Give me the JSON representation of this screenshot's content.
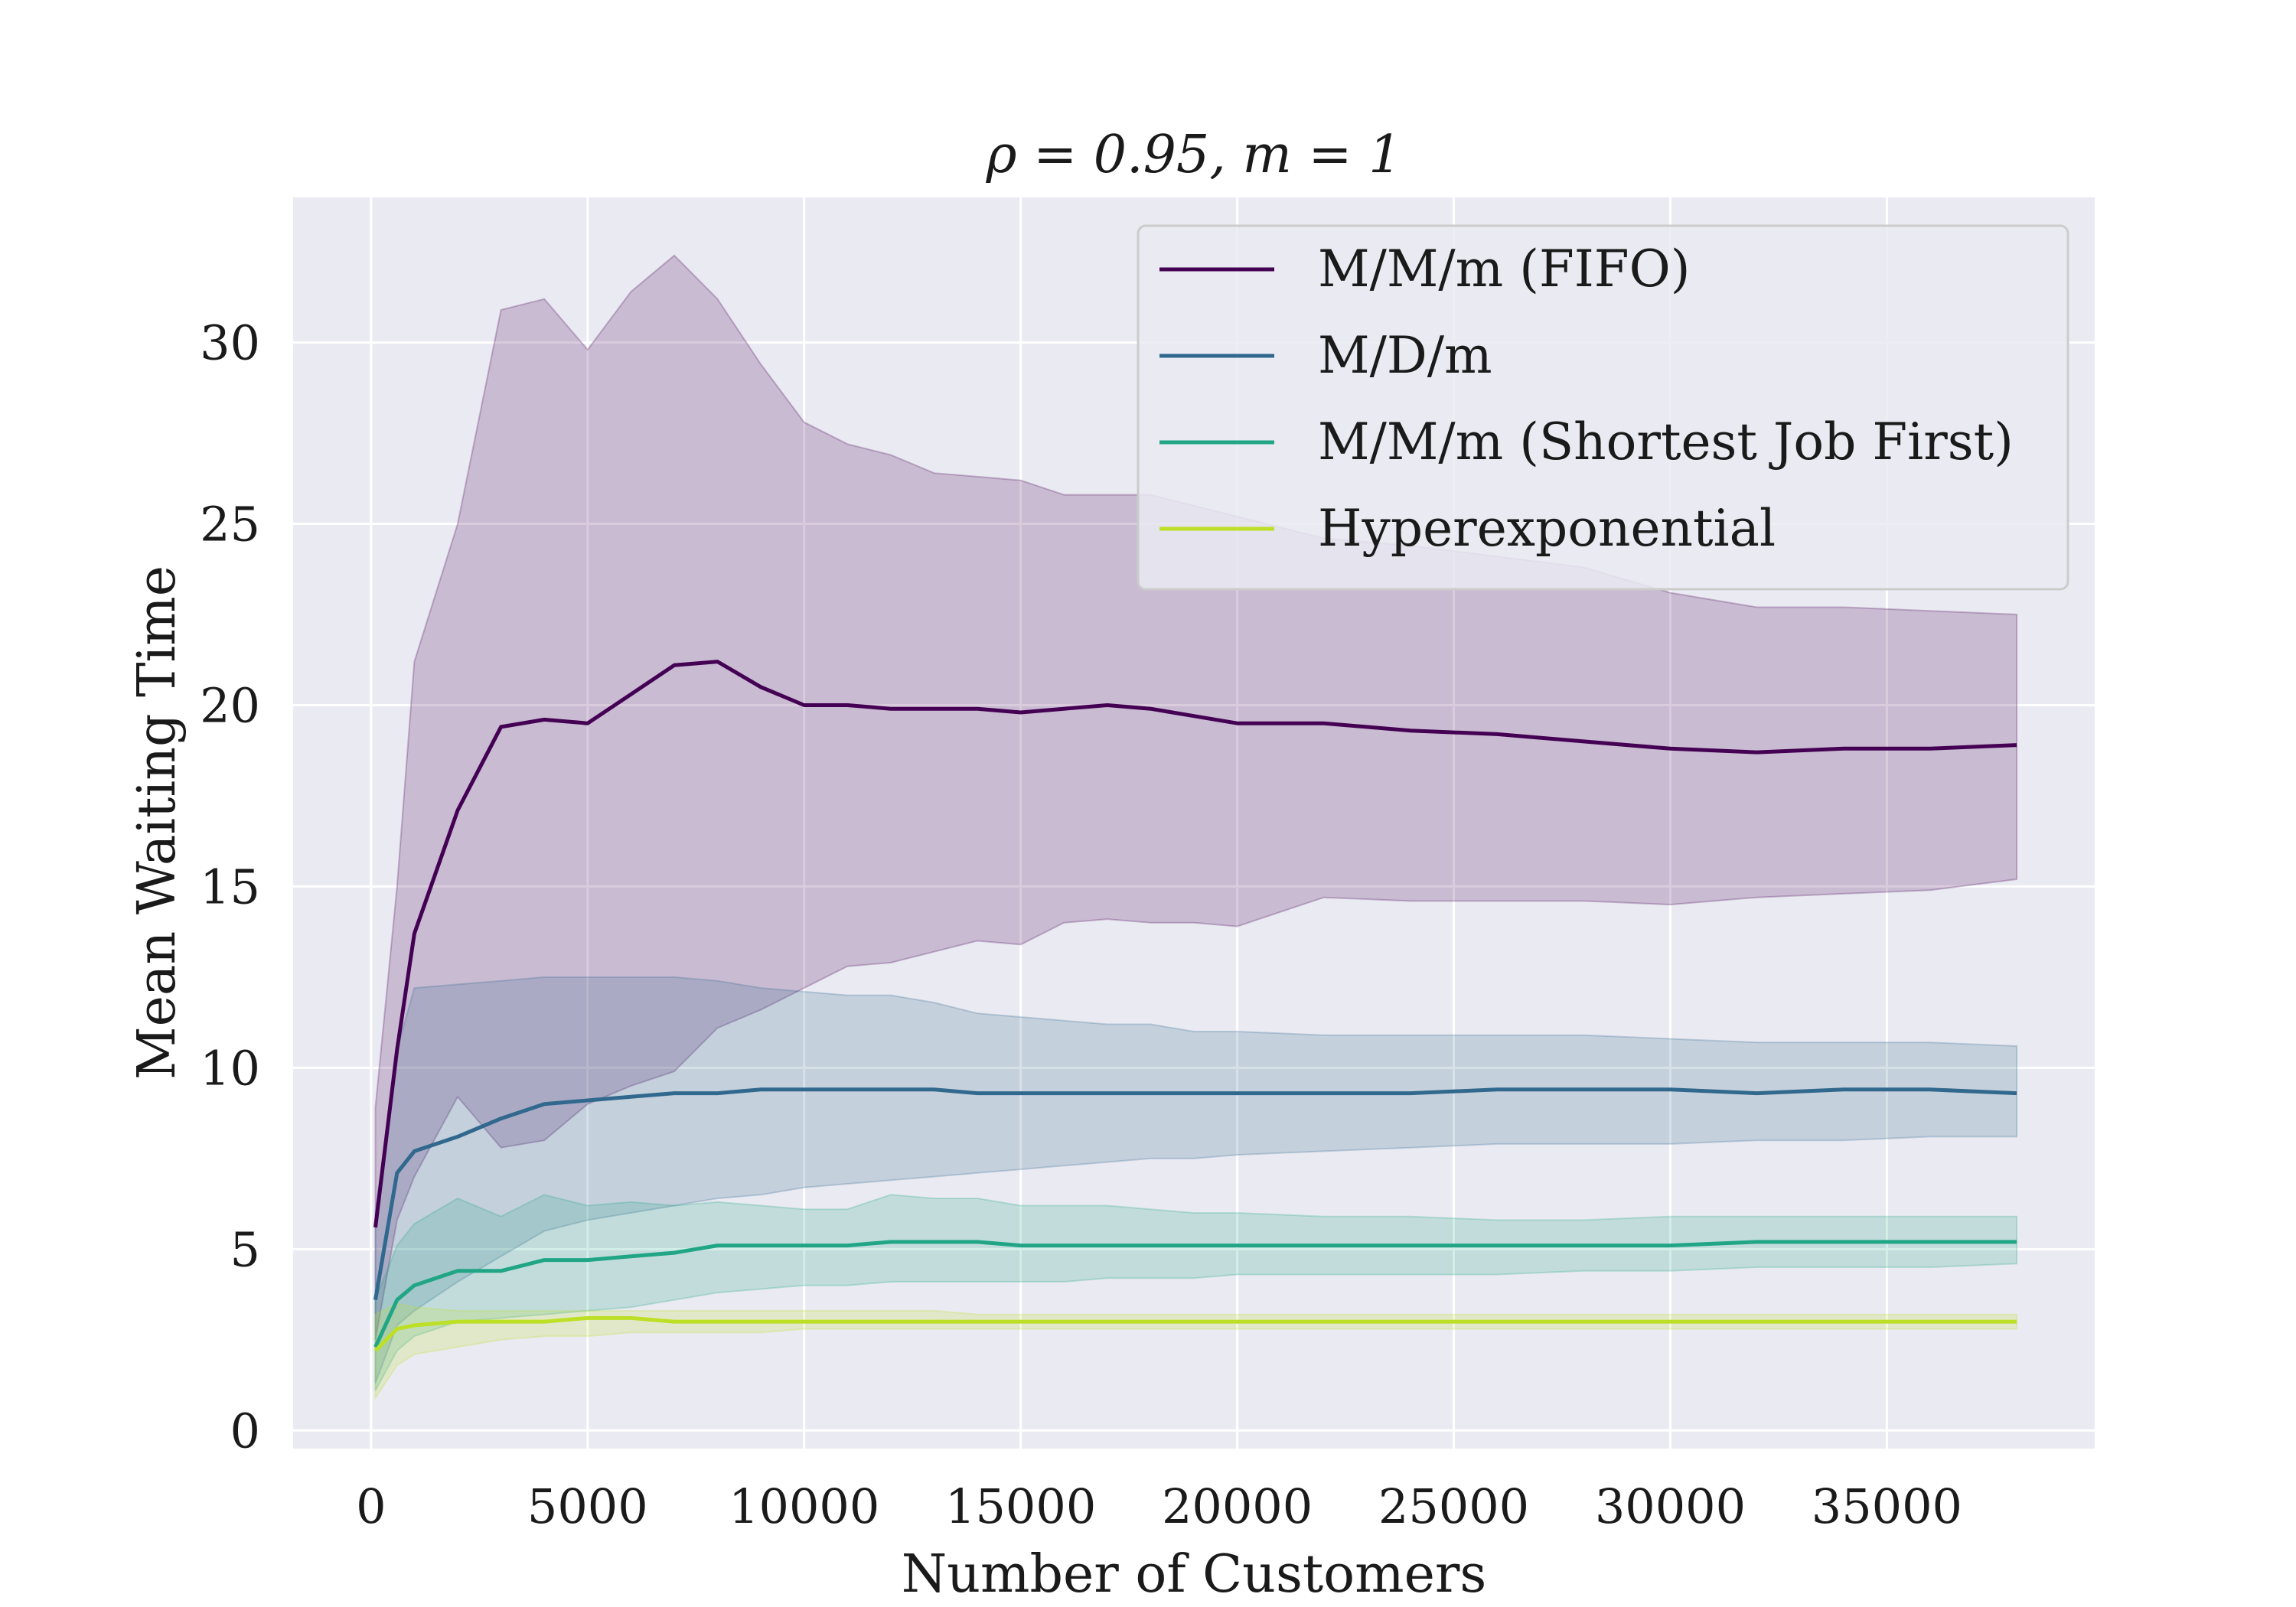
{
  "chart_data": {
    "type": "line",
    "title": "ρ = 0.95, m = 1",
    "xlabel": "Number of Customers",
    "ylabel": "Mean Waiting Time",
    "xlim": [
      -1800,
      39800
    ],
    "ylim": [
      -0.5,
      34
    ],
    "xticks": [
      0,
      5000,
      10000,
      15000,
      20000,
      25000,
      30000,
      35000
    ],
    "yticks": [
      0,
      5,
      10,
      15,
      20,
      25,
      30
    ],
    "grid": true,
    "legend_position": "top-right",
    "series": [
      {
        "name": "M/M/m (FIFO)",
        "color": "#440154",
        "band_color": "#c9b8d3",
        "x": [
          100,
          600,
          1000,
          2000,
          3000,
          4000,
          5000,
          6000,
          7000,
          8000,
          9000,
          10000,
          11000,
          12000,
          13000,
          14000,
          15000,
          16000,
          17000,
          18000,
          19000,
          20000,
          22000,
          24000,
          26000,
          28000,
          30000,
          32000,
          34000,
          36000,
          38000
        ],
        "y": [
          5.6,
          10.5,
          13.7,
          17.1,
          19.4,
          19.6,
          19.5,
          20.3,
          21.1,
          21.2,
          20.5,
          20.0,
          20.0,
          19.9,
          19.9,
          19.9,
          19.8,
          19.9,
          20.0,
          19.9,
          19.7,
          19.5,
          19.5,
          19.3,
          19.2,
          19.0,
          18.8,
          18.7,
          18.8,
          18.8,
          18.9
        ],
        "upper": [
          8.9,
          15.0,
          21.2,
          25.0,
          30.9,
          31.2,
          29.8,
          31.4,
          32.4,
          31.2,
          29.4,
          27.8,
          27.2,
          26.9,
          26.4,
          26.3,
          26.2,
          25.8,
          25.8,
          25.8,
          25.5,
          25.2,
          24.6,
          24.4,
          24.1,
          23.8,
          23.1,
          22.7,
          22.7,
          22.6,
          22.5
        ],
        "lower": [
          2.5,
          5.8,
          7.0,
          9.2,
          7.8,
          8.0,
          9.0,
          9.5,
          9.9,
          11.1,
          11.6,
          12.2,
          12.8,
          12.9,
          13.2,
          13.5,
          13.4,
          14.0,
          14.1,
          14.0,
          14.0,
          13.9,
          14.7,
          14.6,
          14.6,
          14.6,
          14.5,
          14.7,
          14.8,
          14.9,
          15.2
        ]
      },
      {
        "name": "M/D/m",
        "color": "#31688e",
        "band_color": "#b3bdd0",
        "x": [
          100,
          600,
          1000,
          2000,
          3000,
          4000,
          5000,
          6000,
          7000,
          8000,
          9000,
          10000,
          11000,
          12000,
          13000,
          14000,
          15000,
          16000,
          17000,
          18000,
          19000,
          20000,
          22000,
          24000,
          26000,
          28000,
          30000,
          32000,
          34000,
          36000,
          38000
        ],
        "y": [
          3.6,
          7.1,
          7.7,
          8.1,
          8.6,
          9.0,
          9.1,
          9.2,
          9.3,
          9.3,
          9.4,
          9.4,
          9.4,
          9.4,
          9.4,
          9.3,
          9.3,
          9.3,
          9.3,
          9.3,
          9.3,
          9.3,
          9.3,
          9.3,
          9.4,
          9.4,
          9.4,
          9.3,
          9.4,
          9.4,
          9.3
        ],
        "upper": [
          6.0,
          10.5,
          12.2,
          12.3,
          12.4,
          12.5,
          12.5,
          12.5,
          12.5,
          12.4,
          12.2,
          12.1,
          12.0,
          12.0,
          11.8,
          11.5,
          11.4,
          11.3,
          11.2,
          11.2,
          11.0,
          11.0,
          10.9,
          10.9,
          10.9,
          10.9,
          10.8,
          10.7,
          10.7,
          10.7,
          10.6
        ],
        "lower": [
          1.3,
          2.9,
          3.3,
          4.1,
          4.8,
          5.5,
          5.8,
          6.0,
          6.2,
          6.4,
          6.5,
          6.7,
          6.8,
          6.9,
          7.0,
          7.1,
          7.2,
          7.3,
          7.4,
          7.5,
          7.5,
          7.6,
          7.7,
          7.8,
          7.9,
          7.9,
          7.9,
          8.0,
          8.0,
          8.1,
          8.1
        ]
      },
      {
        "name": "M/M/m (Shortest Job First)",
        "color": "#21a685",
        "band_color": "#b7d6d7",
        "x": [
          100,
          600,
          1000,
          2000,
          3000,
          4000,
          5000,
          6000,
          7000,
          8000,
          9000,
          10000,
          11000,
          12000,
          13000,
          14000,
          15000,
          16000,
          17000,
          18000,
          19000,
          20000,
          22000,
          24000,
          26000,
          28000,
          30000,
          32000,
          34000,
          36000,
          38000
        ],
        "y": [
          2.3,
          3.6,
          4.0,
          4.4,
          4.4,
          4.7,
          4.7,
          4.8,
          4.9,
          5.1,
          5.1,
          5.1,
          5.1,
          5.2,
          5.2,
          5.2,
          5.1,
          5.1,
          5.1,
          5.1,
          5.1,
          5.1,
          5.1,
          5.1,
          5.1,
          5.1,
          5.1,
          5.2,
          5.2,
          5.2,
          5.2
        ],
        "upper": [
          3.6,
          5.1,
          5.7,
          6.4,
          5.9,
          6.5,
          6.2,
          6.3,
          6.2,
          6.3,
          6.2,
          6.1,
          6.1,
          6.5,
          6.4,
          6.4,
          6.2,
          6.2,
          6.2,
          6.1,
          6.0,
          6.0,
          5.9,
          5.9,
          5.8,
          5.8,
          5.9,
          5.9,
          5.9,
          5.9,
          5.9
        ],
        "lower": [
          1.1,
          2.2,
          2.6,
          3.0,
          3.1,
          3.2,
          3.3,
          3.4,
          3.6,
          3.8,
          3.9,
          4.0,
          4.0,
          4.1,
          4.1,
          4.1,
          4.1,
          4.1,
          4.2,
          4.2,
          4.2,
          4.3,
          4.3,
          4.3,
          4.3,
          4.4,
          4.4,
          4.5,
          4.5,
          4.5,
          4.6
        ]
      },
      {
        "name": "Hyperexponential",
        "color": "#bddf26",
        "band_color": "#d7dcc3",
        "x": [
          100,
          600,
          1000,
          2000,
          3000,
          4000,
          5000,
          6000,
          7000,
          8000,
          9000,
          10000,
          11000,
          12000,
          13000,
          14000,
          15000,
          16000,
          17000,
          18000,
          19000,
          20000,
          22000,
          24000,
          26000,
          28000,
          30000,
          32000,
          34000,
          36000,
          38000
        ],
        "y": [
          2.2,
          2.8,
          2.9,
          3.0,
          3.0,
          3.0,
          3.1,
          3.1,
          3.0,
          3.0,
          3.0,
          3.0,
          3.0,
          3.0,
          3.0,
          3.0,
          3.0,
          3.0,
          3.0,
          3.0,
          3.0,
          3.0,
          3.0,
          3.0,
          3.0,
          3.0,
          3.0,
          3.0,
          3.0,
          3.0,
          3.0
        ],
        "upper": [
          3.2,
          3.5,
          3.4,
          3.3,
          3.3,
          3.3,
          3.3,
          3.3,
          3.3,
          3.3,
          3.3,
          3.3,
          3.3,
          3.3,
          3.3,
          3.2,
          3.2,
          3.2,
          3.2,
          3.2,
          3.2,
          3.2,
          3.2,
          3.2,
          3.2,
          3.2,
          3.2,
          3.2,
          3.2,
          3.2,
          3.2
        ],
        "lower": [
          0.9,
          1.8,
          2.1,
          2.3,
          2.5,
          2.6,
          2.6,
          2.7,
          2.7,
          2.7,
          2.7,
          2.8,
          2.8,
          2.8,
          2.8,
          2.8,
          2.8,
          2.8,
          2.8,
          2.8,
          2.8,
          2.8,
          2.8,
          2.8,
          2.8,
          2.8,
          2.8,
          2.8,
          2.8,
          2.8,
          2.8
        ]
      }
    ]
  }
}
